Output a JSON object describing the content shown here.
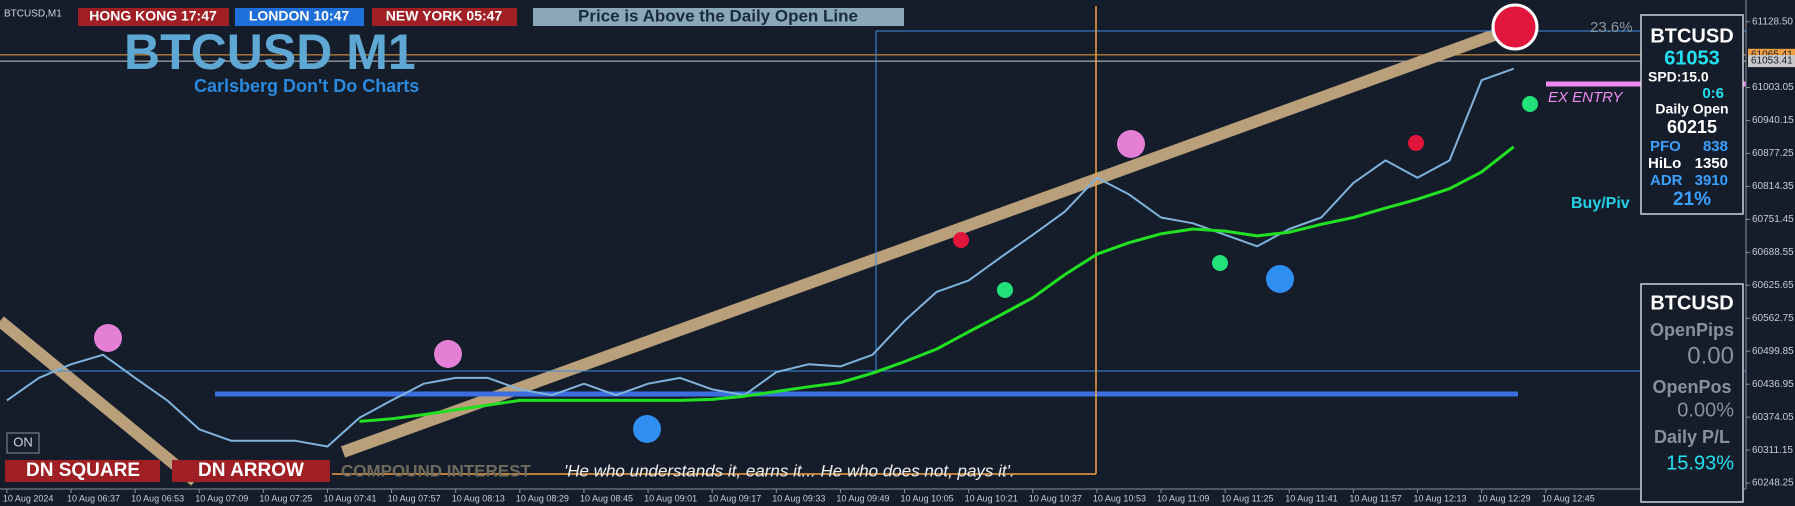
{
  "chart_data": {
    "type": "line",
    "categories": [
      "10 Aug 2024",
      null,
      "10 Aug 06:37",
      null,
      "10 Aug 06:53",
      null,
      "10 Aug 07:09",
      null,
      "10 Aug 07:25",
      null,
      "10 Aug 07:41",
      null,
      "10 Aug 07:57",
      null,
      "10 Aug 08:13",
      null,
      "10 Aug 08:29",
      null,
      "10 Aug 08:45",
      null,
      "10 Aug 09:01",
      null,
      "10 Aug 09:17",
      null,
      "10 Aug 09:33",
      null,
      "10 Aug 09:49",
      null,
      "10 Aug 10:05",
      null,
      "10 Aug 10:21",
      null,
      "10 Aug 10:37",
      null,
      "10 Aug 10:53",
      null,
      "10 Aug 11:09",
      null,
      "10 Aug 11:25",
      null,
      "10 Aug 11:41",
      null,
      "10 Aug 11:57",
      null,
      "10 Aug 12:13",
      null,
      "10 Aug 12:29",
      null,
      "10 Aug 12:45"
    ],
    "series": [
      {
        "color": "#7fb3dc",
        "values": [
          60406,
          60449,
          60475,
          60493,
          60449,
          60406,
          60351,
          60329,
          60329,
          60329,
          60318,
          60373,
          60406,
          60438,
          60449,
          60449,
          60427,
          60416,
          60438,
          60416,
          60438,
          60449,
          60427,
          60416,
          60460,
          60475,
          60471,
          60493,
          60558,
          60613,
          60635,
          60679,
          60722,
          60766,
          60831,
          60799,
          60755,
          60744,
          60722,
          60700,
          60733,
          60755,
          60821,
          60864,
          60831,
          60864,
          61017,
          61039,
          null
        ]
      },
      {
        "color": "#22e022",
        "values": [
          null,
          null,
          null,
          null,
          null,
          null,
          null,
          null,
          null,
          null,
          null,
          60366,
          60371,
          60379,
          60388,
          60397,
          60406,
          60406,
          60406,
          60406,
          60406,
          60406,
          60408,
          60414,
          60423,
          60432,
          60440,
          60458,
          60480,
          60504,
          60537,
          60569,
          60602,
          60646,
          60685,
          60707,
          60724,
          60733,
          60729,
          60720,
          60727,
          60742,
          60755,
          60773,
          60790,
          60810,
          60842,
          60890,
          null
        ]
      }
    ],
    "ylim": [
      60237,
      61170
    ],
    "yticks": [
      {
        "value": 61128.5,
        "label": "61128.50"
      },
      {
        "value": 61003.05,
        "label": "61003.05"
      },
      {
        "value": 60940.15,
        "label": "60940.15"
      },
      {
        "value": 60877.25,
        "label": "60877.25"
      },
      {
        "value": 60814.35,
        "label": "60814.35"
      },
      {
        "value": 60751.45,
        "label": "60751.45"
      },
      {
        "value": 60688.55,
        "label": "60688.55"
      },
      {
        "value": 60625.65,
        "label": "60625.65"
      },
      {
        "value": 60562.75,
        "label": "60562.75"
      },
      {
        "value": 60499.85,
        "label": "60499.85"
      },
      {
        "value": 60436.95,
        "label": "60436.95"
      },
      {
        "value": 60374.05,
        "label": "60374.05"
      },
      {
        "value": 60311.15,
        "label": "60311.15"
      },
      {
        "value": 60248.25,
        "label": "60248.25"
      }
    ],
    "price_lines": [
      {
        "value": 61065.41,
        "label": "61065.41",
        "color": "#f0a040"
      },
      {
        "value": 61053.41,
        "label": "61053.41",
        "color": "#c8c8c8"
      }
    ],
    "grid": false
  },
  "header": {
    "symbol": "BTCUSD,M1",
    "clocks": [
      "HONG KONG 17:47",
      "LONDON 10:47",
      "NEW YORK 05:47"
    ],
    "status": "Price is Above the Daily Open Line"
  },
  "watermark": {
    "title": "BTCUSD M1",
    "subtitle": "Carlsberg Don't Do Charts"
  },
  "annotations": {
    "fib": "23.6%",
    "entry": "EX ENTRY",
    "pivot": "Buy/Piv"
  },
  "info_panel": {
    "symbol": "BTCUSD",
    "price": "61053",
    "spread": "SPD:15.0",
    "timer": "0:6",
    "open_label": "Daily Open",
    "open_value": "60215",
    "pfo_label": "PFO",
    "pfo_value": "838",
    "hilo_label": "HiLo",
    "hilo_value": "1350",
    "adr_label": "ADR",
    "adr_value": "3910",
    "adr_pct": "21%"
  },
  "trade_panel": {
    "symbol": "BTCUSD",
    "pips_label": "OpenPips",
    "pips_value": "0.00",
    "pos_label": "OpenPos",
    "pos_value": "0.00%",
    "pl_label": "Daily P/L",
    "pl_value": "15.93%"
  },
  "footer": {
    "toggle": "ON",
    "buttons": [
      "DN SQUARE",
      "DN ARROW"
    ],
    "motto": "COMPOUND INTEREST",
    "quote": "'He who understands it, earns it... He who does not, pays it'."
  }
}
